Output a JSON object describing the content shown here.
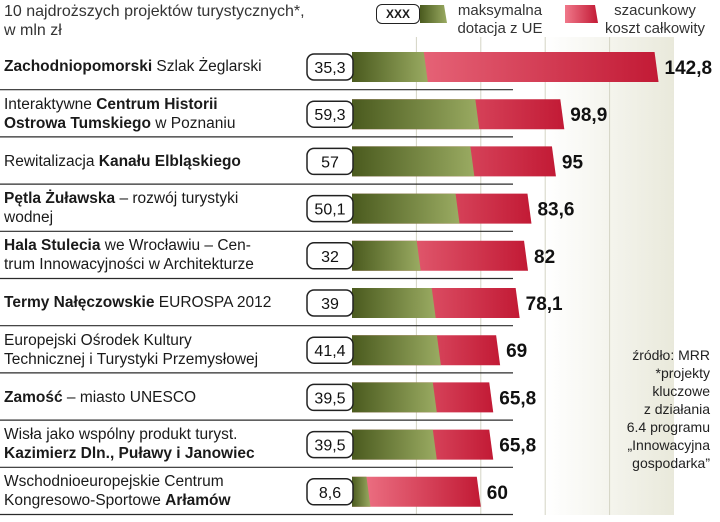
{
  "title": [
    "10 najdroższych projektów turystycznych*,",
    "w mln zł"
  ],
  "legend": {
    "box_label": "XXX",
    "ue": [
      "maksymalna",
      "dotacja z UE"
    ],
    "total": [
      "szacunkowy",
      "koszt całkowity"
    ]
  },
  "source_note": [
    "źródło: MRR",
    "*projekty",
    "kluczowe",
    "z działania",
    "6.4 programu",
    "„Innowacyjna",
    "gospodarka”"
  ],
  "colors": {
    "ue_dark": "#4a5a1e",
    "ue_light": "#9aab62",
    "total_dark": "#c21a35",
    "total_light": "#f0788a",
    "band": "#e9e9db"
  },
  "chart_data": {
    "type": "bar",
    "title": "10 najdroższych projektów turystycznych*, w mln zł",
    "xlim": [
      0,
      150
    ],
    "x_ticks": [
      "0",
      "30",
      "60",
      "90",
      "120",
      "150"
    ],
    "series": [
      {
        "name": "maksymalna dotacja z UE",
        "values": [
          35.3,
          59.3,
          57,
          50.1,
          32,
          39,
          41.4,
          39.5,
          39.5,
          8.6
        ]
      },
      {
        "name": "szacunkowy koszt całkowity",
        "values": [
          142.8,
          98.9,
          95,
          83.6,
          82,
          78.1,
          69,
          65.8,
          65.8,
          60
        ]
      }
    ],
    "categories": [
      "Zachodniopomorski Szlak Żeglarski",
      "Interaktywne Centrum Historii Ostrowa Tumskiego w Poznaniu",
      "Rewitalizacja Kanału Elbląskiego",
      "Pętla Żuławska – rozwój turystyki wodnej",
      "Hala Stulecia we Wrocławiu – Centrum Innowacyjności w Architekturze",
      "Termy Nałęczowskie EUROSPA 2012",
      "Europejski Ośrodek Kultury Technicznej i Turystyki Przemysłowej",
      "Zamość – miasto UNESCO",
      "Wisła jako wspólny produkt turyst. Kazimierz Dln., Puławy i Janowiec",
      "Wschodnioeuropejskie Centrum Kongresowo-Sportowe Arłamów"
    ],
    "ue_labels": [
      "35,3",
      "59,3",
      "57",
      "50,1",
      "32",
      "39",
      "41,4",
      "39,5",
      "39,5",
      "8,6"
    ],
    "total_labels": [
      "142,8",
      "98,9",
      "95",
      "83,6",
      "82",
      "78,1",
      "69",
      "65,8",
      "65,8",
      "60"
    ]
  },
  "row_labels": [
    [
      [
        {
          "t": "Zachodniopomorski",
          "b": true
        },
        {
          "t": " Szlak Żeglarski",
          "b": false
        }
      ]
    ],
    [
      [
        {
          "t": "Interaktywne ",
          "b": false
        },
        {
          "t": "Centrum Historii",
          "b": true
        }
      ],
      [
        {
          "t": "Ostrowa Tumskiego",
          "b": true
        },
        {
          "t": " w Poznaniu",
          "b": false
        }
      ]
    ],
    [
      [
        {
          "t": "Rewitalizacja ",
          "b": false
        },
        {
          "t": "Kanału Elbląskiego",
          "b": true
        }
      ]
    ],
    [
      [
        {
          "t": "Pętla Żuławska",
          "b": true
        },
        {
          "t": " – rozwój turystyki",
          "b": false
        }
      ],
      [
        {
          "t": "wodnej",
          "b": false
        }
      ]
    ],
    [
      [
        {
          "t": "Hala Stulecia",
          "b": true
        },
        {
          "t": " we Wrocławiu – Cen-",
          "b": false
        }
      ],
      [
        {
          "t": "trum Innowacyjności w Architekturze",
          "b": false
        }
      ]
    ],
    [
      [
        {
          "t": "Termy Nałęczowskie",
          "b": true
        },
        {
          "t": " EUROSPA 2012",
          "b": false
        }
      ]
    ],
    [
      [
        {
          "t": "Europejski Ośrodek Kultury",
          "b": false
        }
      ],
      [
        {
          "t": "Technicznej i Turystyki Przemysłowej",
          "b": false
        }
      ]
    ],
    [
      [
        {
          "t": "Zamość",
          "b": true
        },
        {
          "t": " – miasto UNESCO",
          "b": false
        }
      ]
    ],
    [
      [
        {
          "t": "Wisła jako wspólny produkt turyst.",
          "b": false
        }
      ],
      [
        {
          "t": "Kazimierz Dln., Puławy i Janowiec",
          "b": true
        }
      ]
    ],
    [
      [
        {
          "t": "Wschodnioeuropejskie Centrum",
          "b": false
        }
      ],
      [
        {
          "t": "Kongresowo-Sportowe ",
          "b": false
        },
        {
          "t": "Arłamów",
          "b": true
        }
      ]
    ]
  ]
}
